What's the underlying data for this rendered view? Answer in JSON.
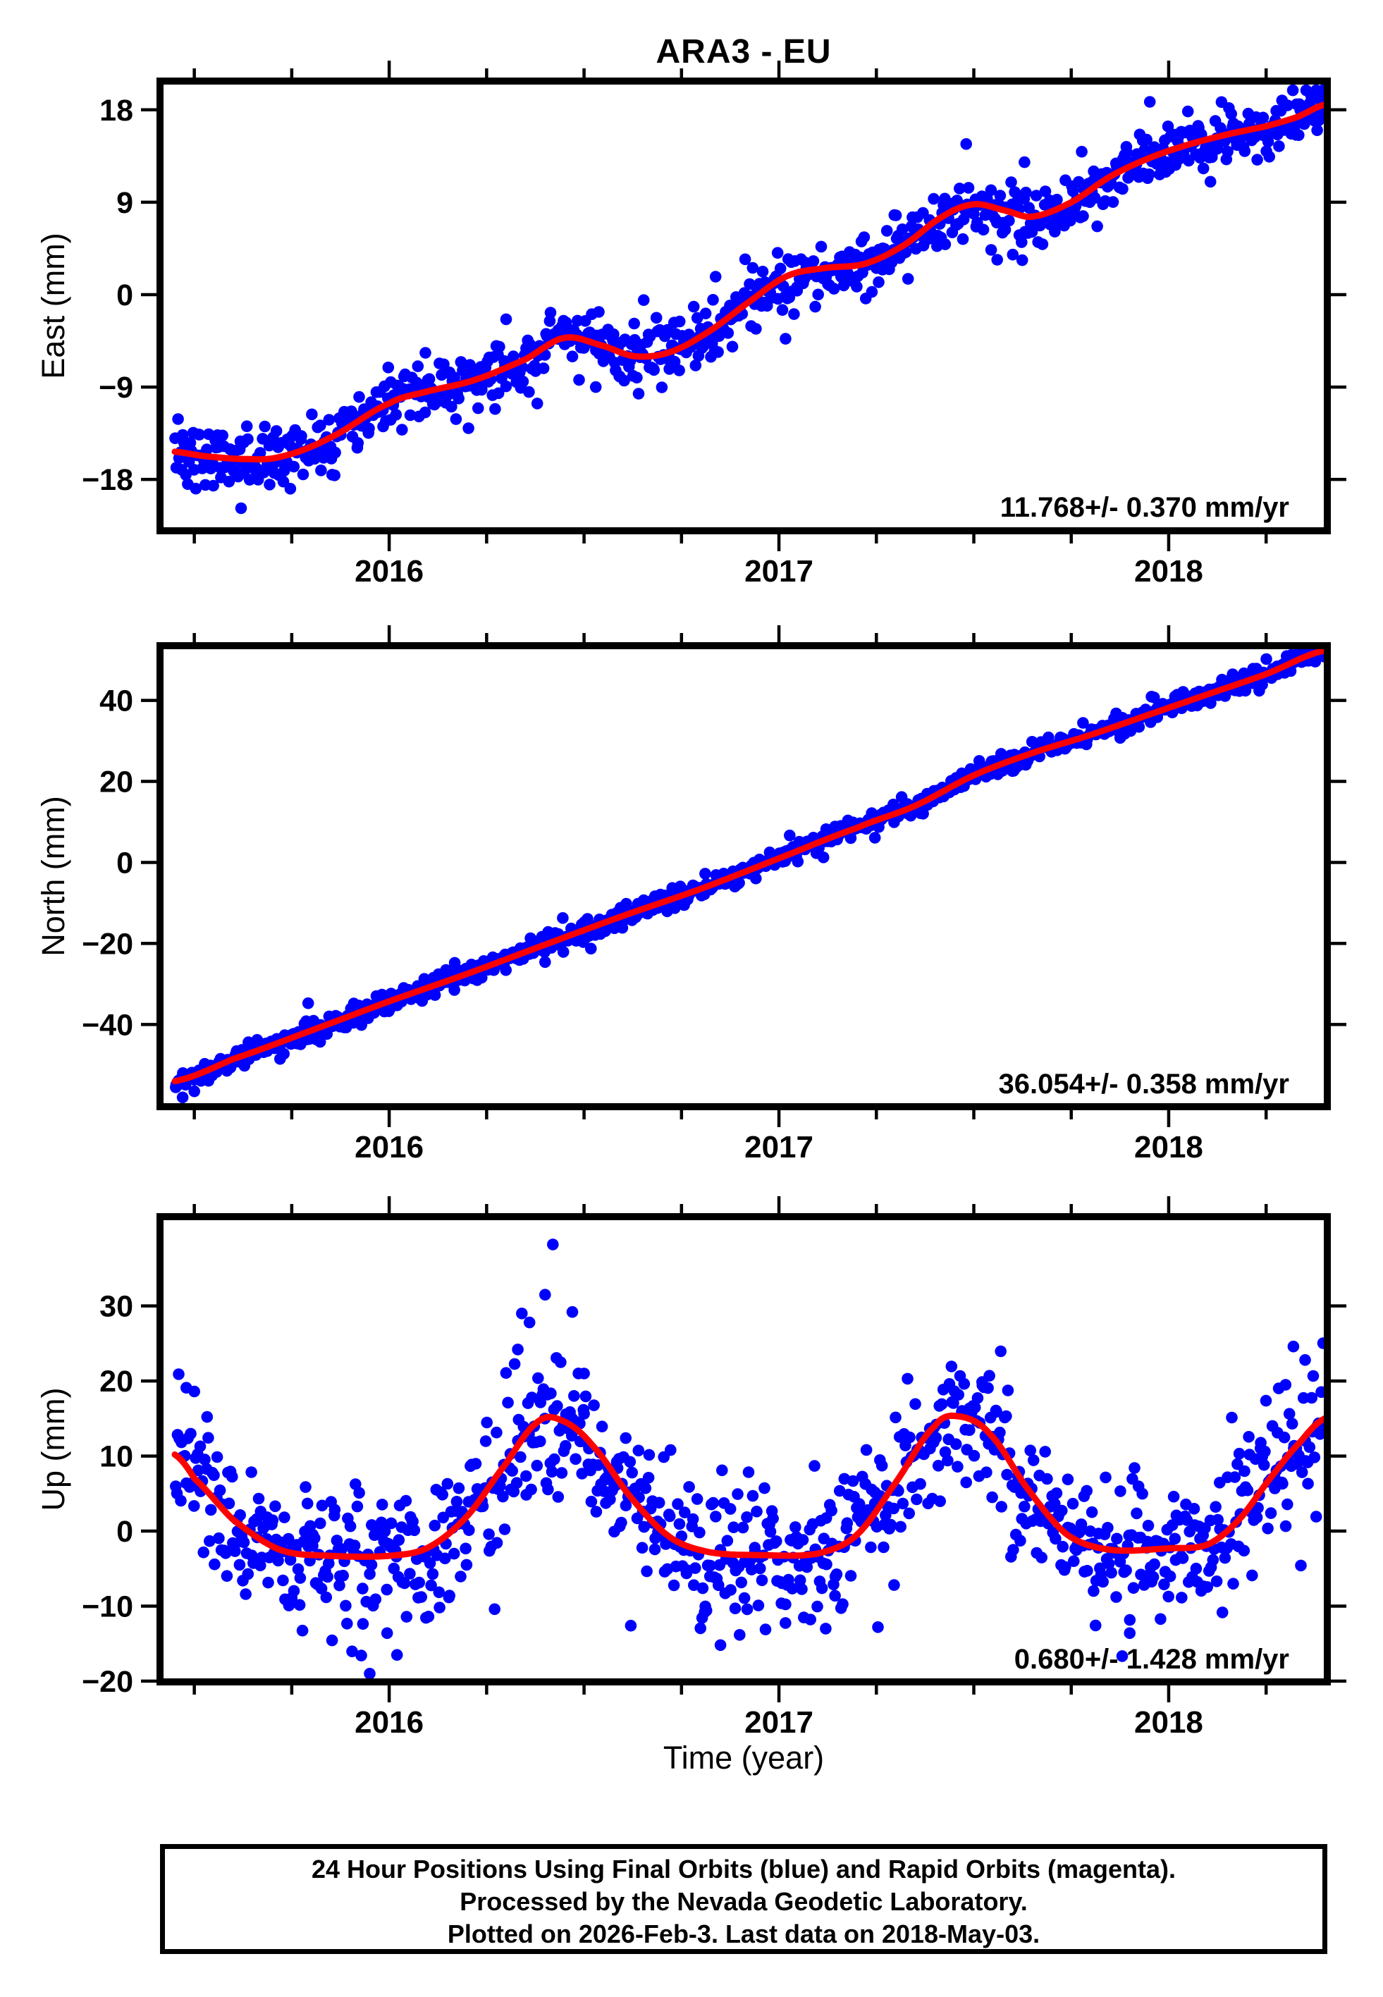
{
  "title": "ARA3 - EU",
  "xlabel": "Time (year)",
  "colors": {
    "point": "#0000ff",
    "trend": "#ff0000",
    "frame": "#000000"
  },
  "x_axis": {
    "xlim": [
      2015.412,
      2018.407
    ],
    "major_ticks": [
      2016,
      2017,
      2018
    ],
    "minor_tick_step": 0.25
  },
  "chart_data": [
    {
      "id": "east",
      "type": "scatter",
      "ylabel": "East (mm)",
      "rate_label": "11.768+/- 0.370 mm/yr",
      "ylim": [
        -23.0,
        20.8
      ],
      "yticks": [
        -18,
        -9,
        0,
        9,
        18
      ],
      "trend": {
        "x": [
          2015.45,
          2015.52,
          2015.62,
          2015.72,
          2015.85,
          2016.0,
          2016.1,
          2016.22,
          2016.35,
          2016.45,
          2016.55,
          2016.63,
          2016.72,
          2016.82,
          2016.92,
          2017.02,
          2017.12,
          2017.22,
          2017.32,
          2017.42,
          2017.5,
          2017.58,
          2017.65,
          2017.75,
          2017.85,
          2017.95,
          2018.05,
          2018.15,
          2018.25,
          2018.33,
          2018.4
        ],
        "y": [
          -15.3,
          -15.7,
          -16.0,
          -15.8,
          -13.9,
          -10.6,
          -9.4,
          -8.3,
          -6.3,
          -4.2,
          -5.0,
          -6.0,
          -5.6,
          -3.6,
          -0.8,
          1.8,
          2.6,
          3.0,
          4.8,
          7.6,
          8.8,
          8.2,
          7.6,
          9.0,
          11.5,
          13.3,
          14.6,
          15.6,
          16.4,
          17.3,
          18.5
        ]
      },
      "scatter": {
        "n": 900,
        "sigma": 1.35,
        "wide_frac": 0.07,
        "wide_mult": 2.1,
        "seed": 12
      },
      "outliers": [
        [
          2015.62,
          -20.8
        ],
        [
          2016.3,
          -2.4
        ],
        [
          2016.53,
          -9.0
        ],
        [
          2017.56,
          3.4
        ],
        [
          2017.6,
          3.9
        ],
        [
          2017.63,
          12.9
        ],
        [
          2015.86,
          -17.6
        ]
      ]
    },
    {
      "id": "north",
      "type": "scatter",
      "ylabel": "North (mm)",
      "rate_label": "36.054+/- 0.358 mm/yr",
      "ylim": [
        -60.3,
        53.5
      ],
      "yticks": [
        -40,
        -20,
        0,
        20,
        40
      ],
      "trend": {
        "x": [
          2015.45,
          2015.6,
          2015.8,
          2016.0,
          2016.2,
          2016.4,
          2016.6,
          2016.8,
          2017.0,
          2017.2,
          2017.35,
          2017.5,
          2017.65,
          2017.8,
          2017.95,
          2018.1,
          2018.25,
          2018.4
        ],
        "y": [
          -54.0,
          -48.5,
          -41.5,
          -34.3,
          -27.5,
          -20.3,
          -13.2,
          -6.5,
          1.0,
          8.5,
          14.0,
          21.5,
          27.0,
          31.5,
          36.5,
          41.5,
          46.5,
          52.3
        ]
      },
      "scatter": {
        "n": 900,
        "sigma": 1.25,
        "wide_frac": 0.06,
        "wide_mult": 2.0,
        "seed": 5
      },
      "outliers": [
        [
          2015.47,
          -58.0
        ],
        [
          2015.5,
          -56.5
        ],
        [
          2016.4,
          -24.6
        ],
        [
          2015.72,
          -48.5
        ],
        [
          2017.57,
          26.8
        ]
      ]
    },
    {
      "id": "up",
      "type": "scatter",
      "ylabel": "Up (mm)",
      "rate_label": "0.680+/- 1.428 mm/yr",
      "ylim": [
        -20.1,
        41.9
      ],
      "yticks": [
        -20,
        -10,
        0,
        10,
        20,
        30
      ],
      "trend": {
        "x": [
          2015.45,
          2015.5,
          2015.6,
          2015.72,
          2015.85,
          2016.0,
          2016.1,
          2016.2,
          2016.3,
          2016.38,
          2016.44,
          2016.52,
          2016.62,
          2016.72,
          2016.82,
          2016.95,
          2017.1,
          2017.2,
          2017.3,
          2017.4,
          2017.46,
          2017.54,
          2017.64,
          2017.74,
          2017.85,
          2018.0,
          2018.1,
          2018.18,
          2018.26,
          2018.34,
          2018.4
        ],
        "y": [
          10.2,
          7.0,
          1.5,
          -2.5,
          -3.3,
          -3.3,
          -2.2,
          2.0,
          9.0,
          14.5,
          14.8,
          11.5,
          4.5,
          -0.8,
          -2.8,
          -3.2,
          -3.0,
          -0.5,
          6.5,
          14.0,
          15.3,
          13.0,
          5.5,
          -0.5,
          -2.5,
          -2.3,
          -1.8,
          1.5,
          7.0,
          12.0,
          15.0
        ]
      },
      "scatter": {
        "n": 900,
        "sigma": 4.6,
        "wide_frac": 0.1,
        "wide_mult": 1.7,
        "seed": 83
      },
      "outliers": [
        [
          2016.42,
          38.2
        ],
        [
          2016.4,
          31.5
        ],
        [
          2016.47,
          29.2
        ],
        [
          2016.36,
          27.8
        ],
        [
          2016.33,
          24.2
        ],
        [
          2016.44,
          22.5
        ],
        [
          2016.5,
          21.0
        ],
        [
          2015.46,
          20.9
        ],
        [
          2015.5,
          18.6
        ],
        [
          2017.54,
          20.7
        ],
        [
          2018.32,
          24.6
        ],
        [
          2018.35,
          22.8
        ],
        [
          2018.3,
          19.5
        ],
        [
          2016.02,
          -16.5
        ],
        [
          2016.85,
          -15.2
        ],
        [
          2017.9,
          -13.6
        ],
        [
          2016.62,
          -12.6
        ],
        [
          2015.95,
          -19.0
        ],
        [
          2017.12,
          -13.0
        ]
      ]
    }
  ],
  "footer": {
    "lines": [
      "24 Hour Positions Using Final Orbits (blue) and Rapid Orbits (magenta).",
      "Processed by the Nevada Geodetic Laboratory.",
      "Plotted on 2026-Feb-3. Last data on 2018-May-03."
    ]
  }
}
